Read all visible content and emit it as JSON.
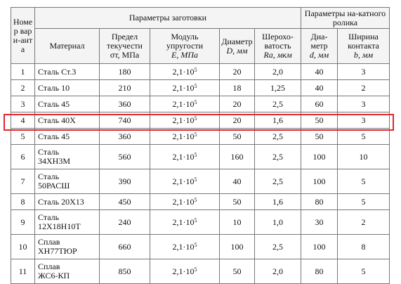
{
  "header": {
    "variant_no": "Номер вари-анта",
    "blank_params": "Параметры заготовки",
    "roller_params": "Параметры на-катного ролика",
    "material": "Материал",
    "yield_label": "Предел текучести",
    "yield_sym": "σт, МПа",
    "modulus_label": "Модуль упругости",
    "modulus_sym": "E, МПа",
    "diameter_label": "Диаметр",
    "diameter_sym": "D, мм",
    "rough_label": "Шерохо-ватость",
    "rough_sym": "Ra, мкм",
    "roller_d_label": "Диа-метр",
    "roller_d_sym": "d, мм",
    "contact_w_label": "Ширина контакта",
    "contact_w_sym": "b, мм"
  },
  "rows": [
    {
      "n": "1",
      "m1": "Сталь Ст.3",
      "m2": "",
      "ys": "180",
      "E": "2,1·10",
      "Eexp": "5",
      "D": "20",
      "Ra": "2,0",
      "d": "40",
      "b": "3"
    },
    {
      "n": "2",
      "m1": "Сталь 10",
      "m2": "",
      "ys": "210",
      "E": "2,1·10",
      "Eexp": "5",
      "D": "18",
      "Ra": "1,25",
      "d": "40",
      "b": "2"
    },
    {
      "n": "3",
      "m1": "Сталь 45",
      "m2": "",
      "ys": "360",
      "E": "2,1·10",
      "Eexp": "5",
      "D": "20",
      "Ra": "2,5",
      "d": "60",
      "b": "3"
    },
    {
      "n": "4",
      "m1": "Сталь 40Х",
      "m2": "",
      "ys": "740",
      "E": "2,1·10",
      "Eexp": "5",
      "D": "20",
      "Ra": "1,6",
      "d": "50",
      "b": "3"
    },
    {
      "n": "5",
      "m1": "Сталь 45",
      "m2": "",
      "ys": "360",
      "E": "2,1·10",
      "Eexp": "5",
      "D": "50",
      "Ra": "2,5",
      "d": "50",
      "b": "5"
    },
    {
      "n": "6",
      "m1": "Сталь",
      "m2": "34ХН3М",
      "ys": "560",
      "E": "2,1·10",
      "Eexp": "5",
      "D": "160",
      "Ra": "2,5",
      "d": "100",
      "b": "10"
    },
    {
      "n": "7",
      "m1": "Сталь",
      "m2": "50РАСШ",
      "ys": "390",
      "E": "2,1·10",
      "Eexp": "5",
      "D": "40",
      "Ra": "2,5",
      "d": "100",
      "b": "5"
    },
    {
      "n": "8",
      "m1": "Сталь 20Х13",
      "m2": "",
      "ys": "450",
      "E": "2,1·10",
      "Eexp": "5",
      "D": "50",
      "Ra": "1,6",
      "d": "80",
      "b": "5"
    },
    {
      "n": "9",
      "m1": "Сталь",
      "m2": "12Х18Н10Т",
      "ys": "240",
      "E": "2,1·10",
      "Eexp": "5",
      "D": "10",
      "Ra": "1,0",
      "d": "30",
      "b": "2"
    },
    {
      "n": "10",
      "m1": "Сплав",
      "m2": "ХН77ТЮР",
      "ys": "660",
      "E": "2,1·10",
      "Eexp": "5",
      "D": "100",
      "Ra": "2,5",
      "d": "100",
      "b": "8"
    },
    {
      "n": "11",
      "m1": "Сплав",
      "m2": "ЖС6-КП",
      "ys": "850",
      "E": "2,1·10",
      "Eexp": "5",
      "D": "50",
      "Ra": "2,0",
      "d": "80",
      "b": "5"
    }
  ],
  "highlight": {
    "row": "5",
    "color": "#e0282e"
  }
}
